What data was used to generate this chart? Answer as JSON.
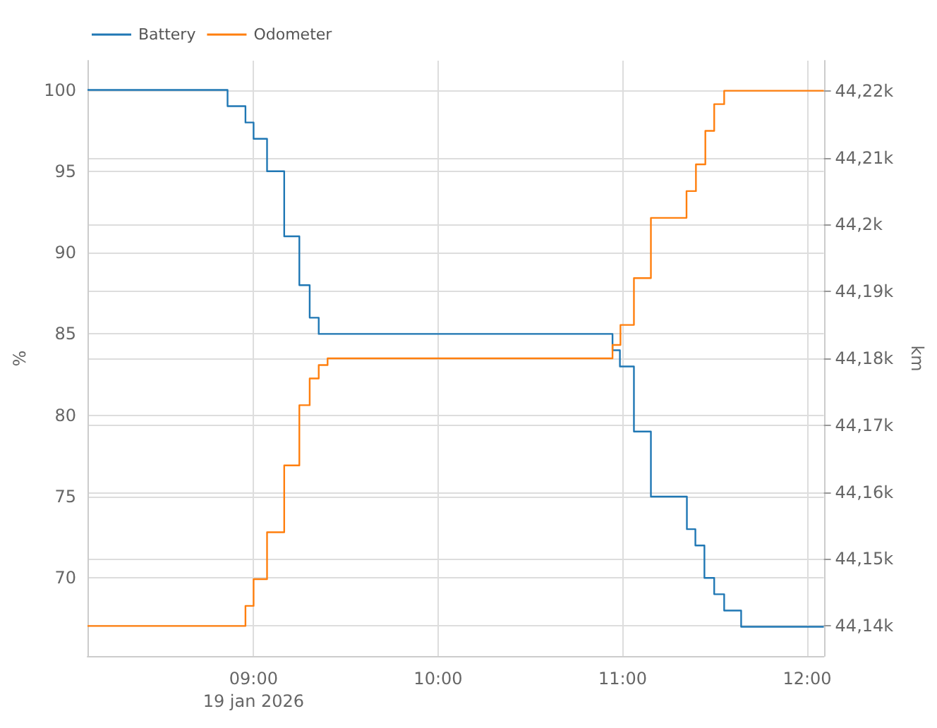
{
  "chart_data": {
    "type": "step",
    "ylabel": "%",
    "y2label": "km",
    "xlim": [
      8.1,
      12.09
    ],
    "xticks": [
      {
        "value": 9,
        "label": "09:00\n19 jan 2026"
      },
      {
        "value": 10,
        "label": "10:00"
      },
      {
        "value": 11,
        "label": "11:00"
      },
      {
        "value": 12,
        "label": "12:00"
      }
    ],
    "ylim": [
      65.2,
      101.8
    ],
    "yticks": [
      70,
      75,
      80,
      85,
      90,
      95,
      100
    ],
    "y2lim": [
      44135.5,
      44224.5
    ],
    "y2ticks": [
      {
        "value": 44140,
        "label": "44,14k"
      },
      {
        "value": 44150,
        "label": "44,15k"
      },
      {
        "value": 44160,
        "label": "44,16k"
      },
      {
        "value": 44170,
        "label": "44,17k"
      },
      {
        "value": 44180,
        "label": "44,18k"
      },
      {
        "value": 44190,
        "label": "44,19k"
      },
      {
        "value": 44200,
        "label": "44,2k"
      },
      {
        "value": 44210,
        "label": "44,21k"
      },
      {
        "value": 44220,
        "label": "44,22k"
      }
    ],
    "grid": true,
    "legend": "top left",
    "marker": "none",
    "line_style": "solid",
    "series": [
      {
        "name": "Battery",
        "color": "#1f77b4",
        "x": [
          8.1,
          8.859,
          8.956,
          9.0,
          9.073,
          9.166,
          9.248,
          9.304,
          9.353,
          10.945,
          10.985,
          11.061,
          11.153,
          11.348,
          11.394,
          11.443,
          11.496,
          11.55,
          11.642,
          12.09
        ],
        "values": [
          100,
          99,
          98,
          97,
          95,
          91,
          88,
          86,
          85,
          84,
          83,
          79,
          75,
          73,
          72,
          70,
          69,
          68,
          67,
          67
        ]
      },
      {
        "name": "Odometer",
        "color": "#ff7f0e",
        "axis": "y2",
        "x": [
          8.1,
          8.956,
          9.0,
          9.073,
          9.166,
          9.248,
          9.304,
          9.353,
          9.401,
          10.945,
          10.988,
          11.061,
          11.153,
          11.346,
          11.397,
          11.448,
          11.496,
          11.55,
          12.09
        ],
        "values": [
          44140,
          44143,
          44147,
          44154,
          44164,
          44173,
          44177,
          44179,
          44180,
          44182,
          44185,
          44192,
          44201,
          44205,
          44209,
          44214,
          44218,
          44220,
          44220
        ]
      }
    ]
  }
}
